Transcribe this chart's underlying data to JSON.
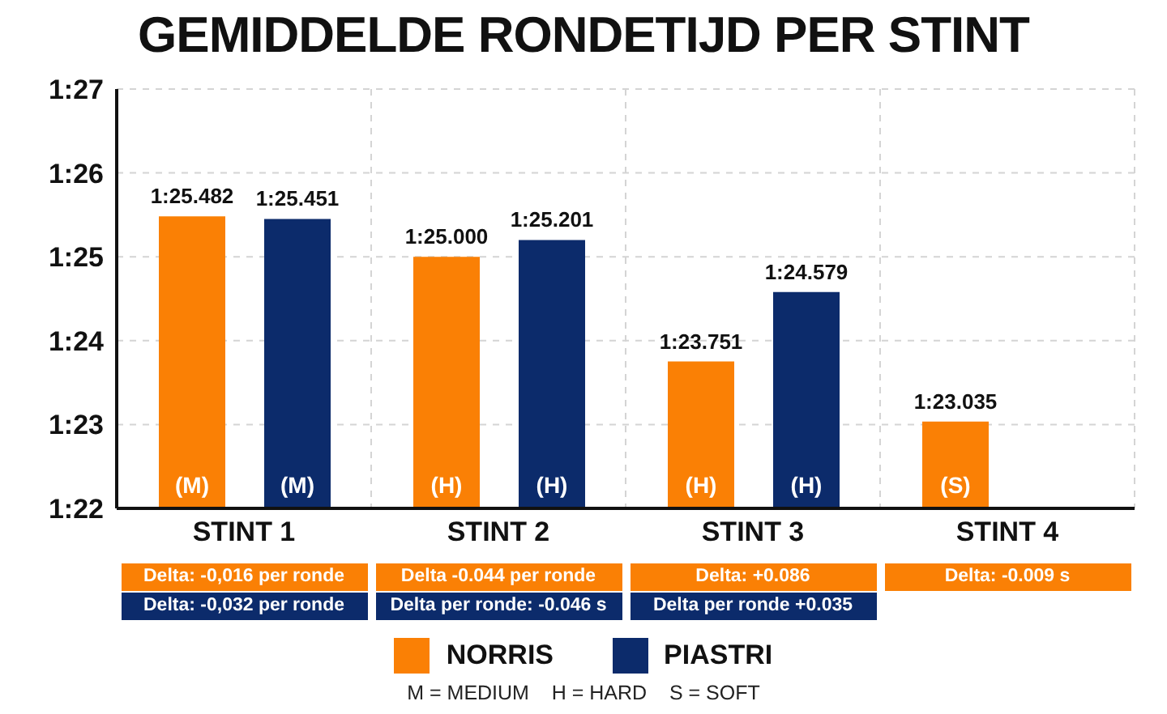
{
  "chart_data": {
    "type": "bar",
    "title": "GEMIDDELDE RONDETIJD PER STINT",
    "categories": [
      "STINT 1",
      "STINT 2",
      "STINT 3",
      "STINT 4"
    ],
    "series": [
      {
        "name": "NORRIS",
        "color": "#fa8005",
        "values": [
          85.482,
          85.0,
          83.751,
          83.035
        ],
        "value_labels": [
          "1:25.482",
          "1:25.000",
          "1:23.751",
          "1:23.035"
        ]
      },
      {
        "name": "PIASTRI",
        "color": "#0c2b6b",
        "values": [
          85.451,
          85.201,
          84.579,
          null
        ],
        "value_labels": [
          "1:25.451",
          "1:25.201",
          "1:24.579",
          null
        ]
      }
    ],
    "ylim": [
      82,
      87
    ],
    "yticks": [
      {
        "value": 82,
        "label": "1:22"
      },
      {
        "value": 83,
        "label": "1:23"
      },
      {
        "value": 84,
        "label": "1:24"
      },
      {
        "value": 85,
        "label": "1:25"
      },
      {
        "value": 86,
        "label": "1:26"
      },
      {
        "value": 87,
        "label": "1:27"
      }
    ],
    "grid": true,
    "legend": "bottom",
    "annotations": [
      "(M)",
      "(M)",
      "(H)",
      "(H)",
      "(H)",
      "(H)",
      "(S)",
      "Delta: -0,016 per ronde",
      "Delta: -0,032 per ronde",
      "Delta -0.044 per ronde",
      "Delta per ronde: -0.046 s",
      "Delta: +0.086",
      "Delta per ronde +0.035",
      "Delta: -0.009 s",
      "M = MEDIUM    H = HARD    S = SOFT"
    ]
  }
}
